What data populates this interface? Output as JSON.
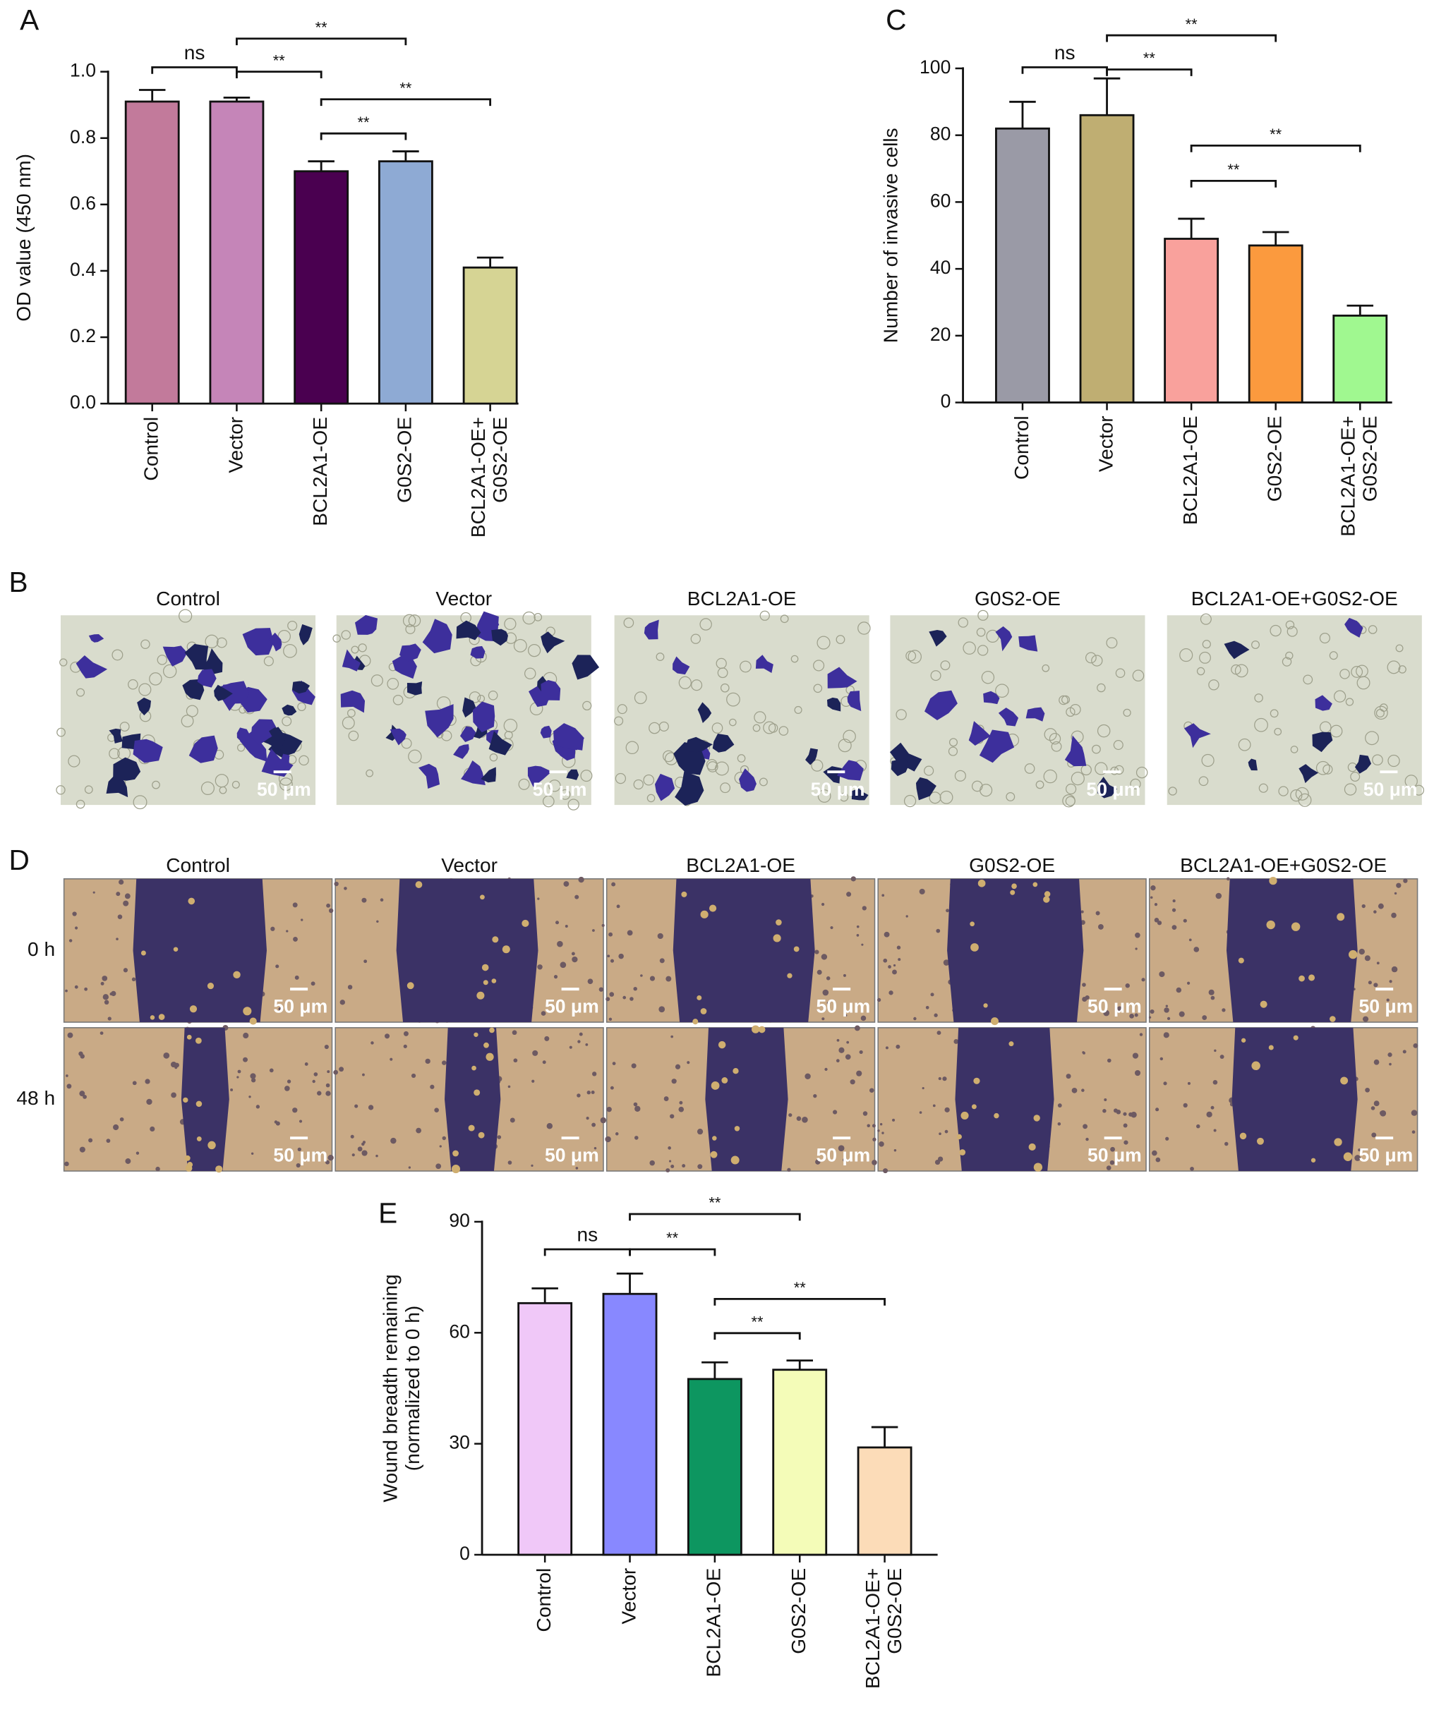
{
  "chart_data": [
    {
      "type": "bar",
      "panel_label": "A",
      "ylabel": "OD value (450 nm)",
      "categories": [
        "Control",
        "Vector",
        "BCL2A1-OE",
        "G0S2-OE",
        "BCL2A1-OE+\nG0S2-OE"
      ],
      "values": [
        0.91,
        0.91,
        0.7,
        0.73,
        0.41
      ],
      "errors": [
        0.035,
        0.012,
        0.03,
        0.03,
        0.03
      ],
      "colors": [
        "#c27a9b",
        "#c585b8",
        "#4a0050",
        "#8eaad4",
        "#d6d494"
      ],
      "ylim": [
        0,
        1
      ],
      "yticks": [
        {
          "value": 0,
          "label": "0.0"
        },
        0.2,
        0.4,
        0.6,
        0.8,
        {
          "value": 1,
          "label": "1.0"
        }
      ],
      "annotations": [
        {
          "text": "ns",
          "between": [
            0,
            1
          ]
        },
        {
          "text": "**",
          "between": [
            1,
            2
          ]
        },
        {
          "text": "**",
          "between": [
            1,
            3
          ]
        },
        {
          "text": "**",
          "between": [
            2,
            3
          ]
        },
        {
          "text": "**",
          "between": [
            2,
            4
          ]
        }
      ]
    },
    {
      "type": "bar",
      "panel_label": "C",
      "ylabel": "Number of invasive cells",
      "categories": [
        "Control",
        "Vector",
        "BCL2A1-OE",
        "G0S2-OE",
        "BCL2A1-OE+\nG0S2-OE"
      ],
      "values": [
        82,
        86,
        49,
        47,
        26
      ],
      "errors": [
        8,
        11,
        6,
        4,
        3
      ],
      "colors": [
        "#9a9aa6",
        "#bfae72",
        "#f9a19c",
        "#fb9a3e",
        "#a0f890"
      ],
      "ylim": [
        0,
        100
      ],
      "yticks": [
        0,
        20,
        40,
        60,
        80,
        100
      ],
      "annotations": [
        {
          "text": "ns",
          "between": [
            0,
            1
          ]
        },
        {
          "text": "**",
          "between": [
            1,
            2
          ]
        },
        {
          "text": "**",
          "between": [
            1,
            3
          ]
        },
        {
          "text": "**",
          "between": [
            2,
            3
          ]
        },
        {
          "text": "**",
          "between": [
            2,
            4
          ]
        }
      ]
    },
    {
      "type": "bar",
      "panel_label": "E",
      "ylabel": "Wound breadth remaining\n(normalized to 0 h)",
      "categories": [
        "Control",
        "Vector",
        "BCL2A1-OE",
        "G0S2-OE",
        "BCL2A1-OE+\nG0S2-OE"
      ],
      "values": [
        68,
        70.5,
        47.5,
        50,
        29
      ],
      "errors": [
        4,
        5.5,
        4.5,
        2.5,
        5.5
      ],
      "colors": [
        "#f0c8f8",
        "#8888ff",
        "#0d9660",
        "#f4fcb8",
        "#fcdcb8"
      ],
      "ylim": [
        0,
        90
      ],
      "yticks": [
        0,
        30,
        60,
        90
      ],
      "annotations": [
        {
          "text": "ns",
          "between": [
            0,
            1
          ]
        },
        {
          "text": "**",
          "between": [
            1,
            2
          ]
        },
        {
          "text": "**",
          "between": [
            1,
            3
          ]
        },
        {
          "text": "**",
          "between": [
            2,
            3
          ]
        },
        {
          "text": "**",
          "between": [
            2,
            4
          ]
        }
      ]
    }
  ],
  "panel_b": {
    "label": "B",
    "columns": [
      "Control",
      "Vector",
      "BCL2A1-OE",
      "G0S2-OE",
      "BCL2A1-OE+G0S2-OE"
    ],
    "scale_bar": "50 μm"
  },
  "panel_d": {
    "label": "D",
    "columns": [
      "Control",
      "Vector",
      "BCL2A1-OE",
      "G0S2-OE",
      "BCL2A1-OE+G0S2-OE"
    ],
    "rows": [
      "0 h",
      "48 h"
    ],
    "scale_bar": "50 μm"
  }
}
